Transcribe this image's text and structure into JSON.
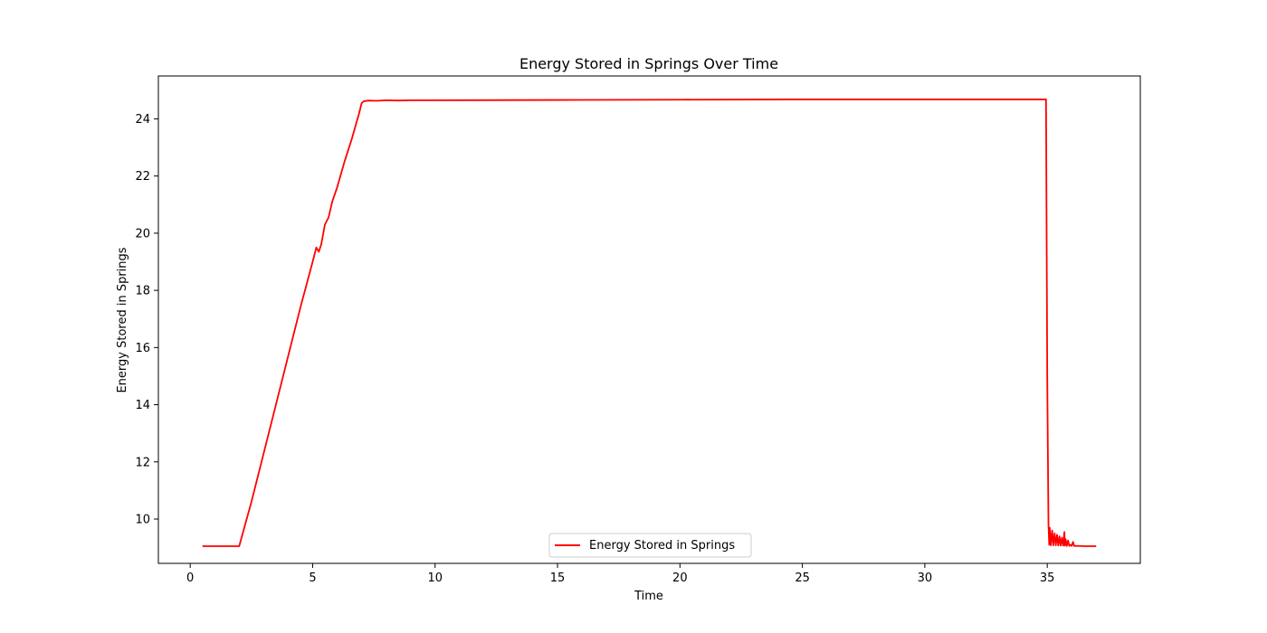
{
  "chart_data": {
    "type": "line",
    "title": "Energy Stored in Springs Over Time",
    "xlabel": "Time",
    "ylabel": "Energy Stored in Springs",
    "xlim": [
      -1.3,
      38.8
    ],
    "ylim": [
      8.45,
      25.5
    ],
    "xticks": [
      0,
      5,
      10,
      15,
      20,
      25,
      30,
      35
    ],
    "yticks": [
      10,
      12,
      14,
      16,
      18,
      20,
      22,
      24
    ],
    "grid": false,
    "legend_position": "bottom-center",
    "series": [
      {
        "name": "Energy Stored in Springs",
        "color": "#ff0000",
        "x": [
          0.5,
          1.0,
          1.5,
          2.0,
          2.5,
          3.0,
          3.5,
          4.0,
          4.5,
          5.0,
          5.15,
          5.25,
          5.35,
          5.5,
          5.65,
          5.8,
          6.0,
          6.3,
          6.6,
          6.9,
          7.0,
          7.1,
          7.3,
          7.6,
          8.0,
          8.5,
          9.0,
          10.0,
          15.0,
          20.0,
          25.0,
          30.0,
          34.95,
          35.0,
          35.05,
          35.08,
          35.1,
          35.15,
          35.2,
          35.25,
          35.3,
          35.35,
          35.4,
          35.45,
          35.5,
          35.55,
          35.6,
          35.65,
          35.7,
          35.72,
          35.75,
          35.8,
          35.85,
          35.9,
          35.95,
          36.0,
          36.05,
          36.1,
          36.3,
          36.5,
          37.0
        ],
        "y": [
          9.05,
          9.05,
          9.05,
          9.05,
          10.6,
          12.3,
          14.0,
          15.7,
          17.4,
          19.0,
          19.5,
          19.35,
          19.6,
          20.3,
          20.55,
          21.1,
          21.6,
          22.5,
          23.3,
          24.2,
          24.55,
          24.62,
          24.64,
          24.63,
          24.65,
          24.64,
          24.65,
          24.65,
          24.66,
          24.67,
          24.68,
          24.68,
          24.68,
          15.0,
          9.8,
          9.1,
          9.7,
          9.08,
          9.6,
          9.08,
          9.5,
          9.08,
          9.45,
          9.07,
          9.4,
          9.07,
          9.35,
          9.07,
          9.55,
          9.07,
          9.3,
          9.06,
          9.25,
          9.06,
          9.1,
          9.06,
          9.2,
          9.06,
          9.06,
          9.05,
          9.05
        ]
      }
    ]
  }
}
